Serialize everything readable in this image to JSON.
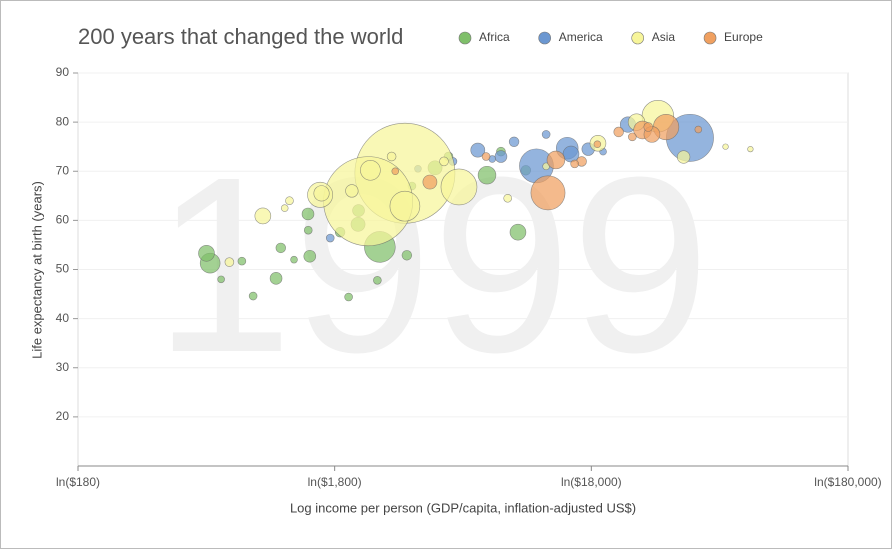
{
  "chart_data": {
    "type": "bubble",
    "title": "200 years that changed the world",
    "year": "1999",
    "xlabel": "Log income per person (GDP/capita, inflation-adjusted US$)",
    "ylabel": "Life expectancy at birth (years)",
    "xlog": true,
    "xlim": [
      180,
      180000
    ],
    "xticks": [
      {
        "value": 180,
        "label": "ln($180)"
      },
      {
        "value": 1800,
        "label": "ln($1,800)"
      },
      {
        "value": 18000,
        "label": "ln($18,000)"
      },
      {
        "value": 180000,
        "label": "ln($180,000)"
      }
    ],
    "ylim": [
      10,
      90
    ],
    "yticks": [
      20,
      30,
      40,
      50,
      60,
      70,
      80,
      90
    ],
    "grid": true,
    "legend": "top",
    "series": [
      {
        "name": "Africa",
        "color": "#7fbf6a",
        "x": [
          589,
          570,
          7060,
          9320,
          4430,
          2220,
          1417,
          1064,
          866,
          783,
          2040,
          2640,
          1440,
          3440,
          10000,
          1420,
          1110,
          1890,
          2700,
          2230,
          650,
          1250,
          5000,
          3600,
          8000
        ],
        "values": [
          51.3,
          53.3,
          69.2,
          57.6,
          70.7,
          59.2,
          61.3,
          48.2,
          44.6,
          51.7,
          44.4,
          47.8,
          52.7,
          52.9,
          70.2,
          58,
          54.4,
          57.6,
          54.6,
          62,
          48,
          52,
          73,
          67,
          74
        ],
        "sizes": [
          50,
          32,
          40,
          32,
          25,
          25,
          18,
          18,
          8,
          8,
          8,
          8,
          18,
          12,
          12,
          8,
          12,
          12,
          120,
          18,
          6,
          6,
          10,
          8,
          10
        ]
      },
      {
        "name": "America",
        "color": "#6b97d1",
        "x": [
          43600,
          11000,
          14500,
          6500,
          8000,
          1730,
          15000,
          17500,
          9000,
          12000,
          5200,
          7400,
          25000,
          3800,
          20000
        ],
        "values": [
          76.8,
          71.1,
          74.7,
          74.3,
          73,
          56.4,
          73.5,
          74.5,
          76,
          77.5,
          72,
          72.5,
          79.5,
          70.5,
          74
        ],
        "sizes": [
          280,
          145,
          60,
          25,
          18,
          8,
          32,
          20,
          12,
          8,
          8,
          6,
          30,
          6,
          6
        ]
      },
      {
        "name": "Asia",
        "color": "#f7f59a",
        "x": [
          3380,
          2430,
          1580,
          32700,
          3380,
          5490,
          2480,
          945,
          19100,
          41200,
          3000,
          1200,
          1600,
          2100,
          4800,
          8500,
          60000,
          75000,
          1150,
          700,
          12000,
          27000
        ],
        "values": [
          69.6,
          63.9,
          65.2,
          81.2,
          62.9,
          66.8,
          70.2,
          60.9,
          75.7,
          72.9,
          73,
          64,
          65.5,
          66,
          72,
          64.5,
          75,
          74.5,
          62.5,
          51.5,
          71,
          80
        ],
        "sizes": [
          1260,
          1000,
          80,
          127,
          113,
          163,
          50,
          32,
          32,
          20,
          10,
          8,
          30,
          20,
          10,
          8,
          4,
          4,
          6,
          10,
          6,
          35
        ]
      },
      {
        "name": "Europe",
        "color": "#f0a060",
        "x": [
          12200,
          35200,
          28500,
          31000,
          13100,
          4230,
          16500,
          23000,
          7000,
          3100,
          19000,
          47000,
          30000,
          26000,
          15500
        ],
        "values": [
          65.6,
          79,
          78.4,
          77.5,
          72.3,
          67.8,
          72,
          78,
          73,
          70,
          75.5,
          78.5,
          79,
          77,
          71.5
        ],
        "sizes": [
          147,
          82,
          40,
          32,
          40,
          25,
          12,
          12,
          8,
          6,
          6,
          6,
          10,
          8,
          8
        ]
      }
    ]
  }
}
